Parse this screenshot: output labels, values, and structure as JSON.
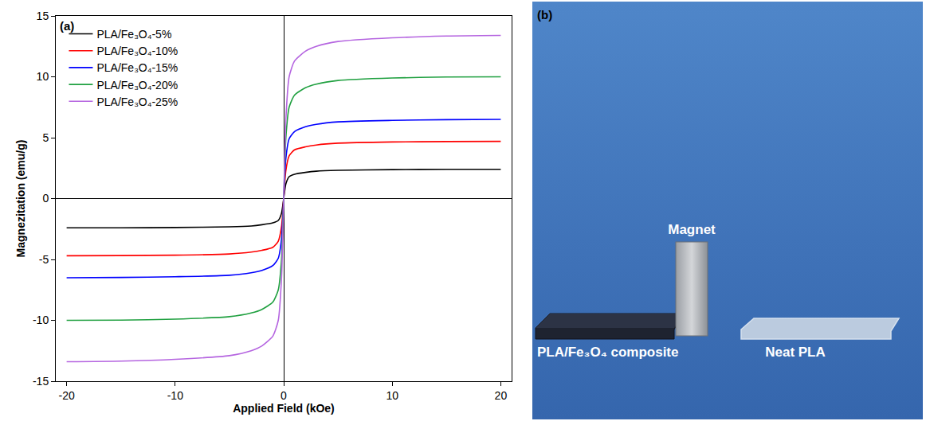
{
  "chart_data": {
    "type": "line",
    "annotations": [
      {
        "text": "(a)"
      }
    ],
    "x_label": "Applied Field (kOe)",
    "y_label": "Magnezitation (emu/g)",
    "x": [
      -20,
      -15,
      -10,
      -5,
      -3,
      -2,
      -1,
      -0.5,
      -0.2,
      0,
      0.2,
      0.5,
      1,
      2,
      3,
      5,
      10,
      15,
      20
    ],
    "series": [
      {
        "name": "PLA/Fe₃O₄-5%",
        "color": "#000000",
        "values": [
          -2.4,
          -2.4,
          -2.38,
          -2.32,
          -2.25,
          -2.15,
          -2.0,
          -1.8,
          -1.2,
          0,
          1.2,
          1.8,
          2.0,
          2.15,
          2.25,
          2.32,
          2.38,
          2.4,
          2.4
        ]
      },
      {
        "name": "PLA/Fe₃O₄-10%",
        "color": "#ff0000",
        "values": [
          -4.7,
          -4.68,
          -4.65,
          -4.55,
          -4.4,
          -4.25,
          -4.0,
          -3.5,
          -2.3,
          0,
          2.3,
          3.5,
          4.0,
          4.25,
          4.4,
          4.55,
          4.65,
          4.68,
          4.7
        ]
      },
      {
        "name": "PLA/Fe₃O₄-15%",
        "color": "#0000ff",
        "values": [
          -6.5,
          -6.48,
          -6.42,
          -6.3,
          -6.1,
          -5.9,
          -5.5,
          -4.9,
          -3.3,
          0,
          3.3,
          4.9,
          5.5,
          5.9,
          6.1,
          6.3,
          6.42,
          6.48,
          6.5
        ]
      },
      {
        "name": "PLA/Fe₃O₄-20%",
        "color": "#20a040",
        "values": [
          -10.0,
          -9.98,
          -9.9,
          -9.7,
          -9.4,
          -9.1,
          -8.5,
          -7.5,
          -5.0,
          0,
          5.0,
          7.5,
          8.5,
          9.1,
          9.4,
          9.7,
          9.9,
          9.98,
          10.0
        ]
      },
      {
        "name": "PLA/Fe₃O₄-25%",
        "color": "#b565e0",
        "values": [
          -13.4,
          -13.35,
          -13.2,
          -12.9,
          -12.5,
          -12.1,
          -11.3,
          -10.0,
          -6.5,
          0,
          6.5,
          10.0,
          11.3,
          12.1,
          12.5,
          12.9,
          13.2,
          13.35,
          13.4
        ]
      }
    ],
    "xlim": [
      -21,
      21
    ],
    "xticks": [
      -20,
      -10,
      0,
      10,
      20
    ],
    "ylim": [
      -15,
      15
    ],
    "yticks": [
      -15,
      -10,
      -5,
      0,
      5,
      10,
      15
    ],
    "grid": false,
    "legend": "top left"
  },
  "figure_b": {
    "label": "(b)",
    "objects": [
      {
        "id": "composite",
        "label": "PLA/Fe₃O₄ composite"
      },
      {
        "id": "magnet",
        "label": "Magnet"
      },
      {
        "id": "neat",
        "label": "Neat PLA"
      }
    ]
  }
}
